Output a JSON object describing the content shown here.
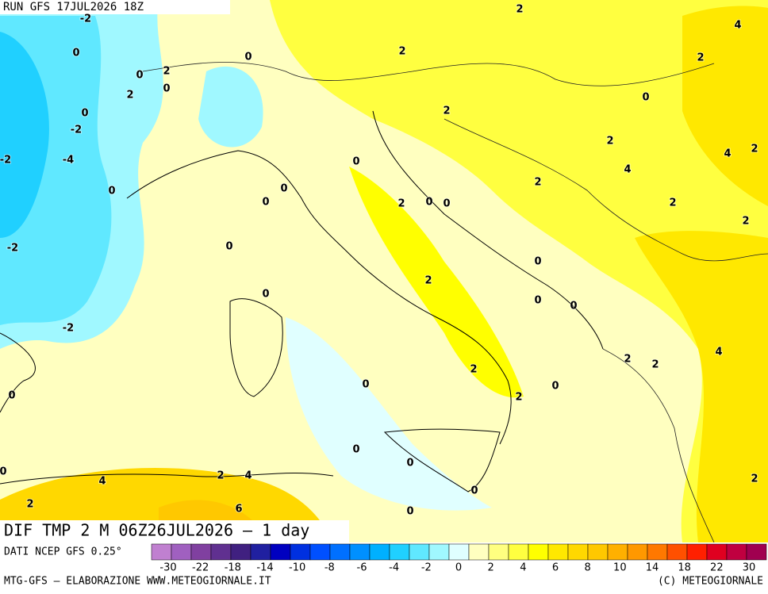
{
  "header": {
    "run": "RUN GFS 17JUL2026 18Z"
  },
  "map": {
    "title": "DIF TMP 2 M 06Z26JUL2026 — 1 day",
    "contour_labels": [
      "-2",
      "2",
      "4",
      "0",
      "0",
      "2",
      "2",
      "0",
      "2",
      "0",
      "2",
      "0",
      "0",
      "2",
      "-2",
      "2",
      "4",
      "2",
      "-2",
      "-4",
      "0",
      "4",
      "2",
      "0",
      "0",
      "0",
      "2",
      "0",
      "0",
      "2",
      "2",
      "-2",
      "0",
      "0",
      "2",
      "0",
      "0",
      "0",
      "-2",
      "4",
      "2",
      "2",
      "2",
      "0",
      "0",
      "0",
      "2",
      "0",
      "0",
      "0",
      "4",
      "2",
      "4",
      "0",
      "2",
      "6",
      "0",
      "2"
    ]
  },
  "colorbar": {
    "source": "DATI NCEP GFS 0.25°",
    "colors": [
      "#c080d0",
      "#a060c0",
      "#8040a0",
      "#603090",
      "#402080",
      "#2020a0",
      "#0000c0",
      "#0030e0",
      "#0050ff",
      "#0070ff",
      "#0090ff",
      "#00b0ff",
      "#20d0ff",
      "#60e8ff",
      "#a0f8ff",
      "#e0ffff",
      "#ffffc0",
      "#ffff80",
      "#ffff40",
      "#ffff00",
      "#ffe800",
      "#ffd800",
      "#ffc800",
      "#ffb000",
      "#ff9800",
      "#ff7800",
      "#ff5000",
      "#ff2000",
      "#e00020",
      "#c00040",
      "#a00050"
    ],
    "ticks": [
      -30,
      -22,
      -18,
      -14,
      -10,
      -8,
      -6,
      -4,
      -2,
      0,
      2,
      4,
      6,
      8,
      10,
      14,
      18,
      22,
      30
    ]
  },
  "footer": {
    "left": "MTG-GFS — ELABORAZIONE WWW.METEOGIORNALE.IT",
    "right": "(C) METEOGIORNALE"
  }
}
